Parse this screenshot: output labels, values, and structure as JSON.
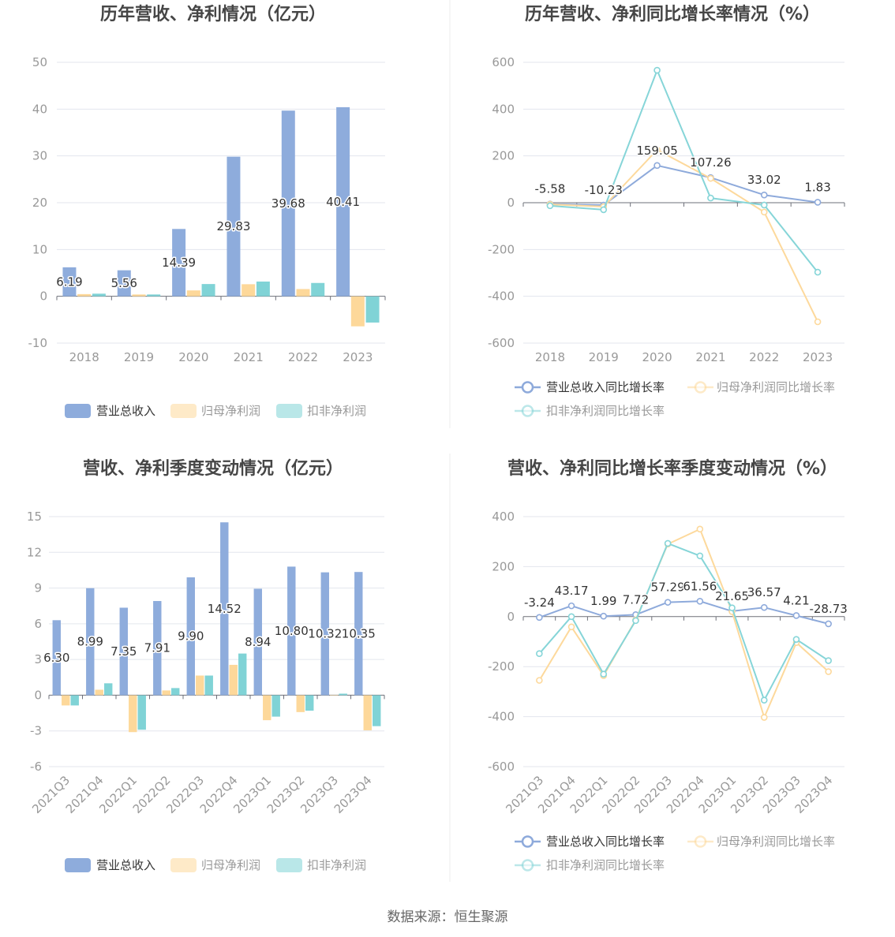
{
  "footer": {
    "source": "数据来源：恒生聚源"
  },
  "chart_data": [
    {
      "type": "bar",
      "title": "历年营收、净利情况（亿元）",
      "categories": [
        "2018",
        "2019",
        "2020",
        "2021",
        "2022",
        "2023"
      ],
      "ylim": [
        -10,
        50
      ],
      "yticks": [
        50,
        40,
        30,
        20,
        10,
        0,
        -10
      ],
      "grid": true,
      "legend": "bottom",
      "series": [
        {
          "name": "营业总收入",
          "values": [
            6.19,
            5.56,
            14.39,
            29.83,
            39.68,
            40.41
          ],
          "color": "#8eacdc",
          "data_labels": true
        },
        {
          "name": "归母净利润",
          "values": [
            0.47,
            0.39,
            1.26,
            2.58,
            1.55,
            -6.42
          ],
          "color": "#fdd89a"
        },
        {
          "name": "扣非净利润",
          "values": [
            0.56,
            0.39,
            2.62,
            3.15,
            2.85,
            -5.61
          ],
          "color": "#80d3d6"
        }
      ]
    },
    {
      "type": "line",
      "title": "历年营收、净利同比增长率情况（%）",
      "categories": [
        "2018",
        "2019",
        "2020",
        "2021",
        "2022",
        "2023"
      ],
      "ylim": [
        -600,
        600
      ],
      "yticks": [
        600,
        400,
        200,
        0,
        -200,
        -400,
        -600
      ],
      "grid": true,
      "legend": "bottom",
      "series": [
        {
          "name": "营业总收入同比增长率",
          "values": [
            -5.58,
            -10.23,
            159.05,
            107.26,
            33.02,
            1.83
          ],
          "color": "#8eaadb",
          "data_labels": true
        },
        {
          "name": "归母净利润同比增长率",
          "values": [
            -7,
            -17,
            226,
            104,
            -40,
            -509
          ],
          "color": "#fdd99c"
        },
        {
          "name": "扣非净利润同比增长率",
          "values": [
            -13,
            -30,
            566,
            20,
            -10,
            -297
          ],
          "color": "#86d5d8"
        }
      ]
    },
    {
      "type": "bar",
      "title": "营收、净利季度变动情况（亿元）",
      "categories": [
        "2021Q3",
        "2021Q4",
        "2022Q1",
        "2022Q2",
        "2022Q3",
        "2022Q4",
        "2023Q1",
        "2023Q2",
        "2023Q3",
        "2023Q4"
      ],
      "ylim": [
        -6,
        15
      ],
      "yticks": [
        15,
        12,
        9,
        6,
        3,
        0,
        -3,
        -6
      ],
      "grid": true,
      "legend": "bottom",
      "series": [
        {
          "name": "营业总收入",
          "values": [
            6.3,
            8.99,
            7.35,
            7.91,
            9.9,
            14.52,
            8.94,
            10.8,
            10.32,
            10.35
          ],
          "color": "#8eacdc",
          "data_labels": true
        },
        {
          "name": "归母净利润",
          "values": [
            -0.86,
            0.46,
            -3.1,
            0.4,
            1.65,
            2.55,
            -2.1,
            -1.42,
            0.02,
            -2.95
          ],
          "color": "#fdd89a"
        },
        {
          "name": "扣非净利润",
          "values": [
            -0.86,
            1.0,
            -2.9,
            0.6,
            1.65,
            3.5,
            -1.8,
            -1.3,
            0.13,
            -2.6
          ],
          "color": "#80d3d6"
        }
      ]
    },
    {
      "type": "line",
      "title": "营收、净利同比增长率季度变动情况（%）",
      "categories": [
        "2021Q3",
        "2021Q4",
        "2022Q1",
        "2022Q2",
        "2022Q3",
        "2022Q4",
        "2023Q1",
        "2023Q2",
        "2023Q3",
        "2023Q4"
      ],
      "ylim": [
        -600,
        400
      ],
      "yticks": [
        400,
        200,
        0,
        -200,
        -400,
        -600
      ],
      "grid": true,
      "legend": "bottom",
      "series": [
        {
          "name": "营业总收入同比增长率",
          "values": [
            -3.24,
            43.17,
            1.99,
            7.72,
            57.29,
            61.56,
            21.65,
            36.57,
            4.21,
            -28.73
          ],
          "color": "#8eaadb",
          "data_labels": true
        },
        {
          "name": "归母净利润同比增长率",
          "values": [
            -255,
            -41,
            -236,
            -13,
            290,
            350,
            20,
            -403,
            -104,
            -220
          ],
          "color": "#fdd99c"
        },
        {
          "name": "扣非净利润同比增长率",
          "values": [
            -148,
            0,
            -230,
            -16,
            293,
            243,
            35,
            -334,
            -91,
            -176
          ],
          "color": "#86d5d8"
        }
      ]
    }
  ]
}
